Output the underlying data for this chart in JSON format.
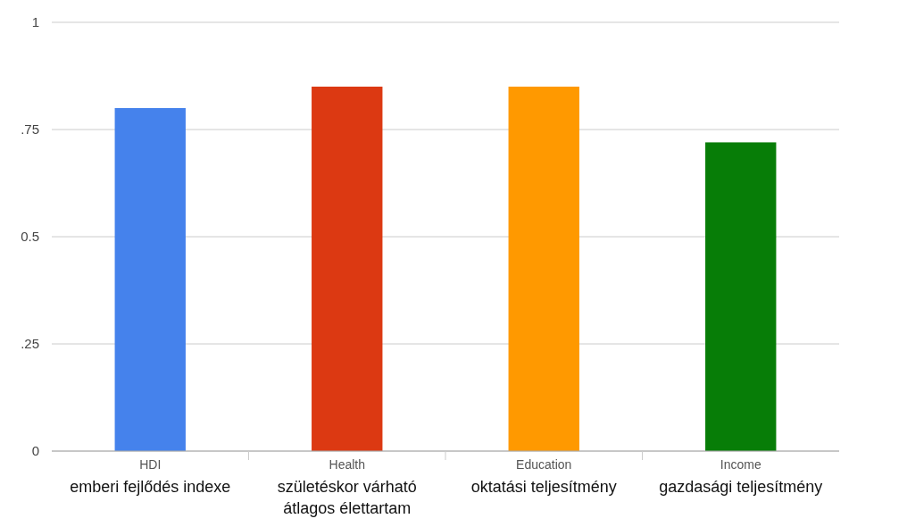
{
  "chart_data": {
    "type": "bar",
    "categories": [
      "HDI",
      "Health",
      "Education",
      "Income"
    ],
    "values": [
      0.8,
      0.85,
      0.85,
      0.72
    ],
    "colors": [
      "#4582ec",
      "#dc3912",
      "#ff9900",
      "#077d07"
    ],
    "ylim": [
      0,
      1
    ],
    "yticks": [
      0,
      {
        "value": 0.25,
        "label": ".25"
      },
      0.5,
      {
        "value": 0.75,
        "label": ".75"
      },
      1
    ],
    "grid": "y",
    "annotations": [
      "emberi fejlődés indexe",
      "születéskor várható átlagos élettartam",
      "oktatási teljesítmény",
      "gazdasági teljesítmény"
    ]
  }
}
